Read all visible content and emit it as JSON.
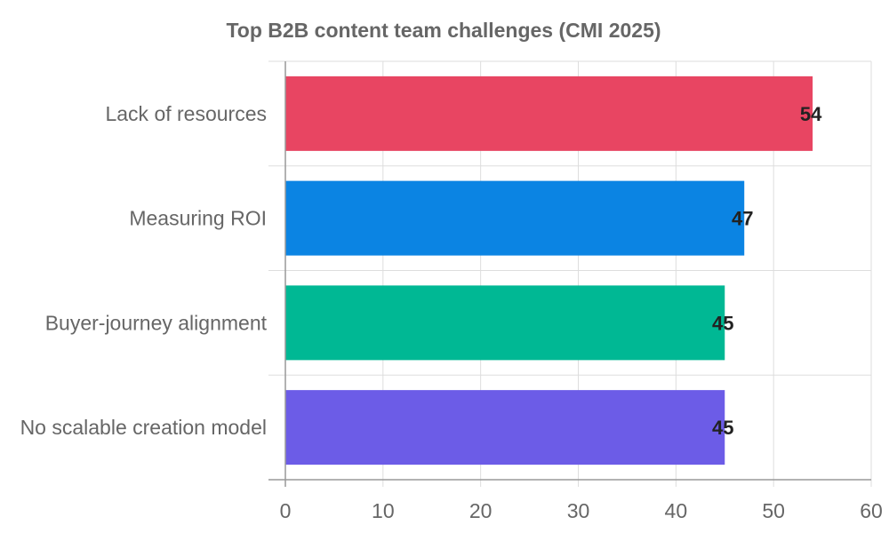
{
  "chart_data": {
    "type": "bar",
    "orientation": "horizontal",
    "title": "Top B2B content team challenges (CMI 2025)",
    "categories": [
      "Lack of resources",
      "Measuring ROI",
      "Buyer-journey alignment",
      "No scalable creation model"
    ],
    "values": [
      54,
      47,
      45,
      45
    ],
    "colors": [
      "#e84562",
      "#0b84e3",
      "#00b894",
      "#6c5ce7"
    ],
    "xlim": [
      0,
      60
    ],
    "xticks": [
      0,
      10,
      20,
      30,
      40,
      50,
      60
    ],
    "grid": true,
    "legend": "none"
  }
}
